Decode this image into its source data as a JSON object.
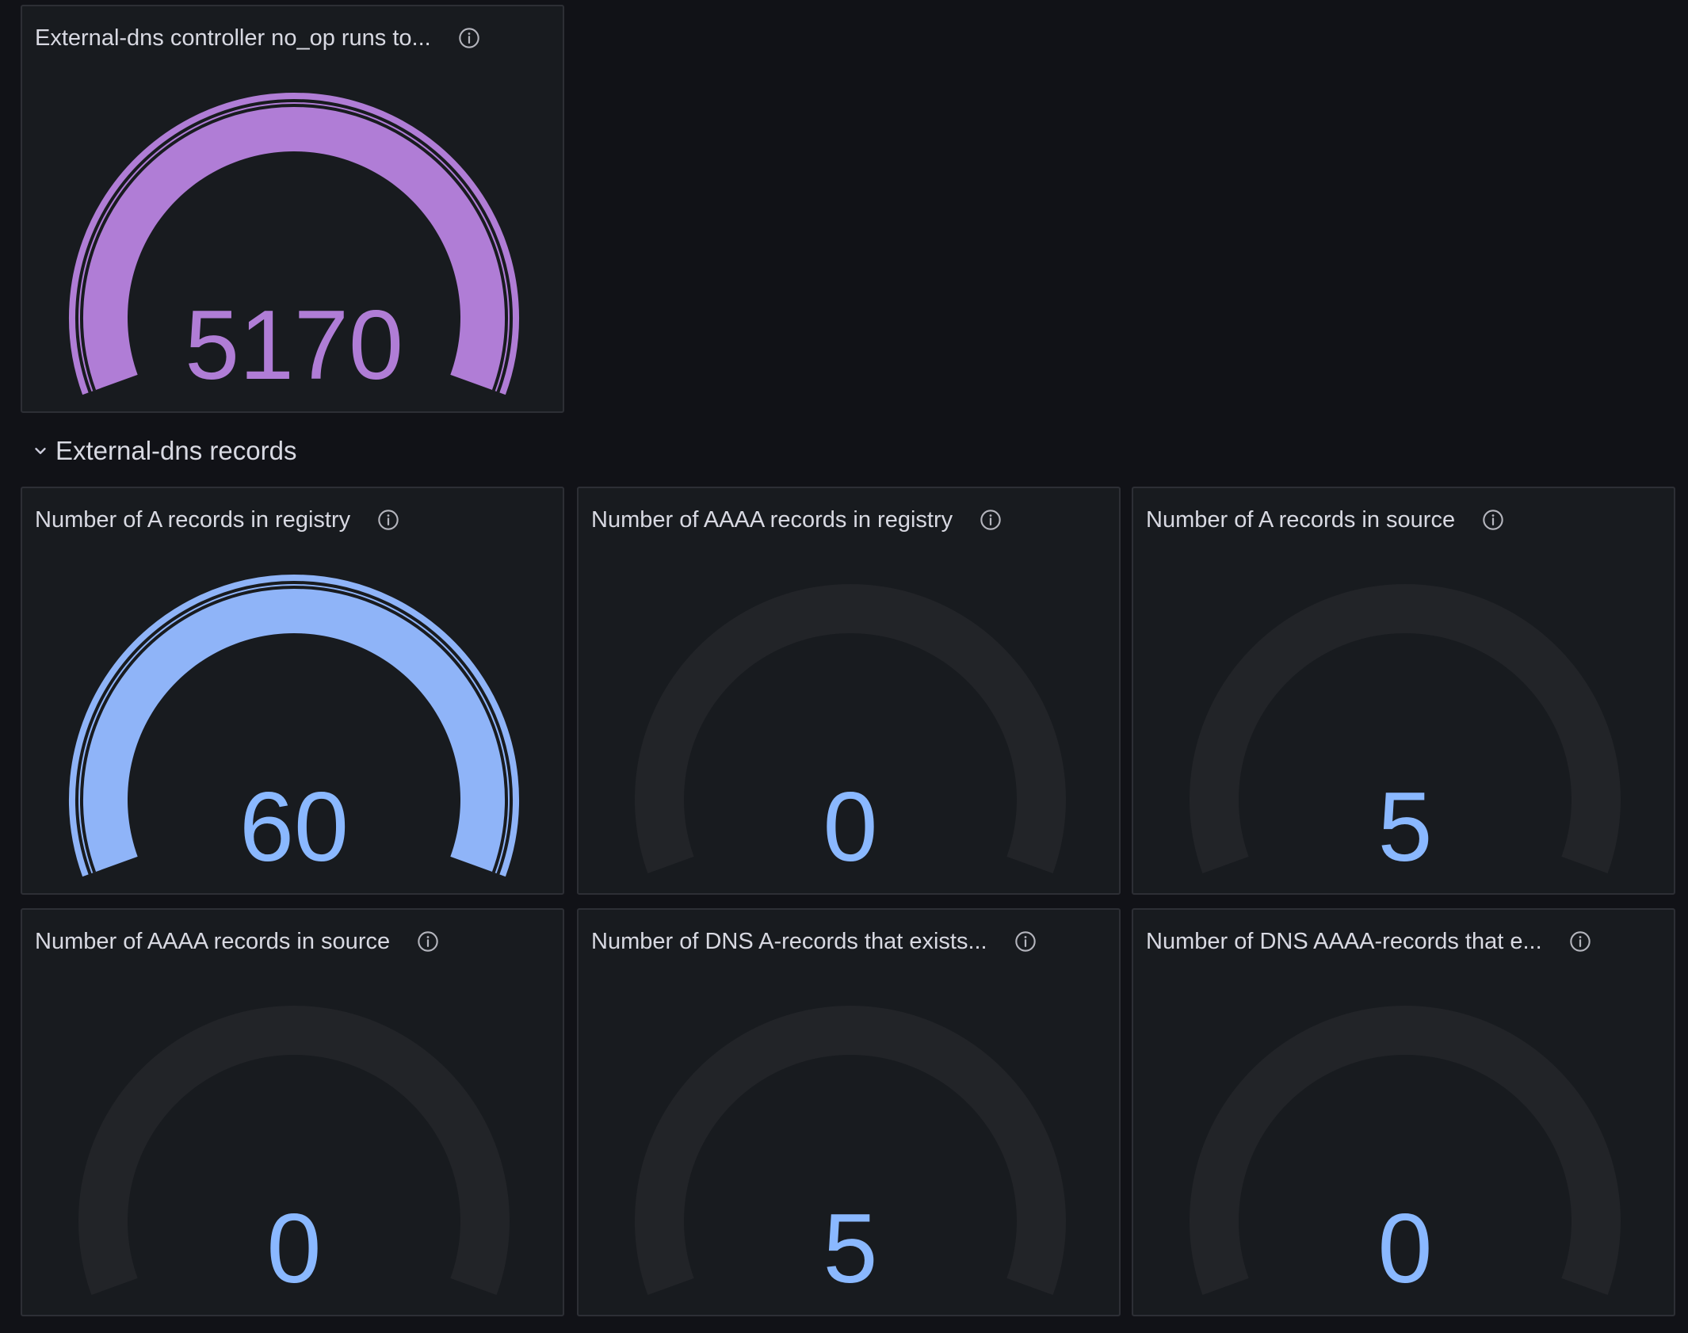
{
  "colors": {
    "page_bg": "#111217",
    "panel_bg": "#181b1f",
    "panel_border": "#2d2f35",
    "track": "#222428",
    "purple": "#b07dd6",
    "blue": "#8fb4f8",
    "value_blue": "#8ab8ff"
  },
  "row": {
    "title": "External-dns records",
    "icon": "chevron-down-icon"
  },
  "panels": [
    {
      "id": "noop",
      "title": "External-dns controller no_op runs to...",
      "value": "5170",
      "fill": 1.0,
      "color": "purple",
      "info_icon": "info-circle-icon"
    },
    {
      "id": "a-registry",
      "title": "Number of A records in registry",
      "value": "60",
      "fill": 1.0,
      "color": "blue",
      "info_icon": "info-circle-icon"
    },
    {
      "id": "aaaa-registry",
      "title": "Number of AAAA records in registry",
      "value": "0",
      "fill": 0,
      "color": "blue",
      "info_icon": "info-circle-icon"
    },
    {
      "id": "a-source",
      "title": "Number of A records in source",
      "value": "5",
      "fill": 0,
      "color": "blue",
      "info_icon": "info-circle-icon"
    },
    {
      "id": "aaaa-source",
      "title": "Number of AAAA records in source",
      "value": "0",
      "fill": 0,
      "color": "blue",
      "info_icon": "info-circle-icon"
    },
    {
      "id": "dns-a-exists",
      "title": "Number of DNS A-records that exists...",
      "value": "5",
      "fill": 0,
      "color": "blue",
      "info_icon": "info-circle-icon"
    },
    {
      "id": "dns-aaaa-exists",
      "title": "Number of DNS AAAA-records that e...",
      "value": "0",
      "fill": 0,
      "color": "blue",
      "info_icon": "info-circle-icon"
    }
  ]
}
